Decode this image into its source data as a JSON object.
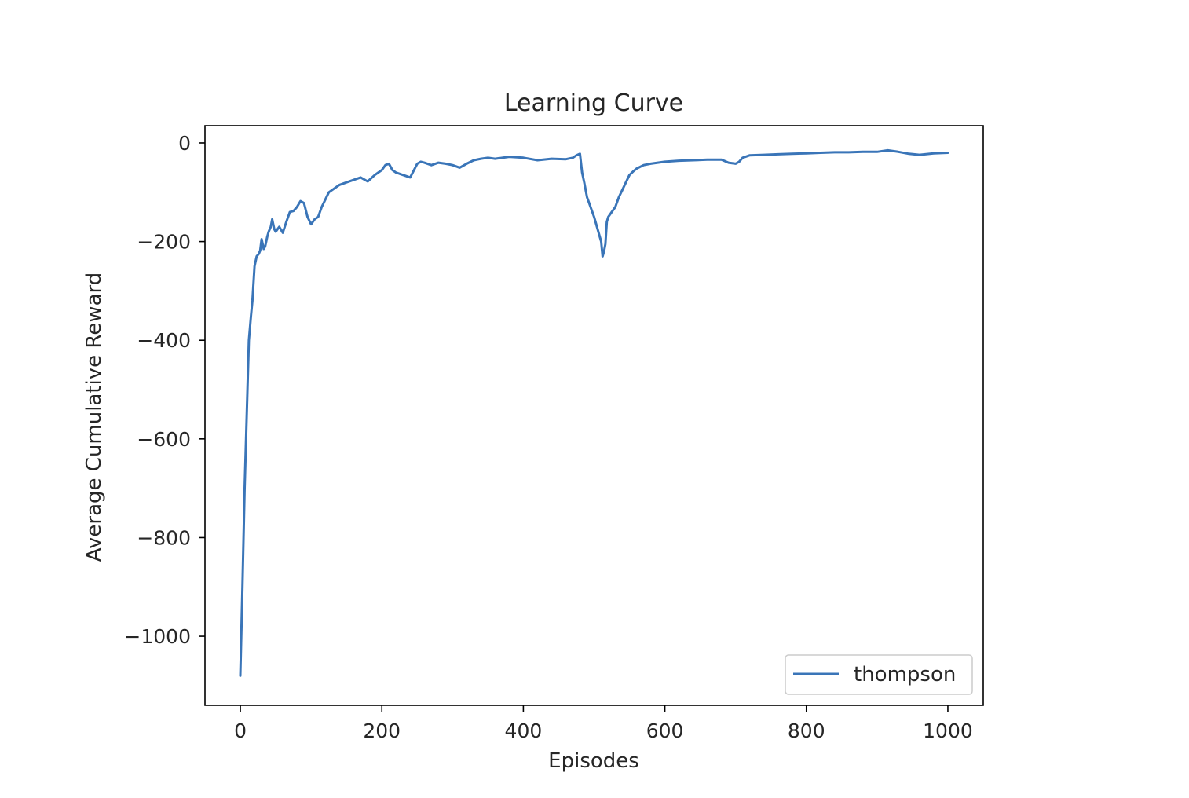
{
  "chart_data": {
    "type": "line",
    "title": "Learning Curve",
    "xlabel": "Episodes",
    "ylabel": "Average Cumulative Reward",
    "xlim": [
      -50,
      1050
    ],
    "ylim": [
      -1140,
      35
    ],
    "xticks": [
      0,
      200,
      400,
      600,
      800,
      1000
    ],
    "xtick_labels": [
      "0",
      "200",
      "400",
      "600",
      "800",
      "1000"
    ],
    "yticks": [
      0,
      -200,
      -400,
      -600,
      -800,
      -1000
    ],
    "ytick_labels": [
      "0",
      "−200",
      "−400",
      "−600",
      "−800",
      "−1000"
    ],
    "grid": false,
    "legend": {
      "placement": "lower-right"
    },
    "series": [
      {
        "name": "thompson",
        "color": "#3a75b8",
        "x": [
          0,
          3,
          6,
          10,
          12,
          15,
          17,
          20,
          23,
          26,
          28,
          30,
          33,
          35,
          38,
          40,
          43,
          45,
          48,
          50,
          55,
          60,
          65,
          70,
          75,
          80,
          85,
          90,
          95,
          100,
          105,
          110,
          115,
          120,
          125,
          130,
          140,
          150,
          160,
          170,
          180,
          190,
          200,
          205,
          210,
          215,
          220,
          230,
          240,
          250,
          255,
          260,
          270,
          280,
          290,
          300,
          310,
          320,
          330,
          340,
          350,
          360,
          380,
          400,
          420,
          440,
          460,
          470,
          475,
          480,
          483,
          486,
          490,
          495,
          500,
          505,
          510,
          512,
          514,
          516,
          518,
          520,
          525,
          530,
          535,
          540,
          545,
          550,
          555,
          560,
          570,
          580,
          590,
          600,
          620,
          640,
          660,
          680,
          690,
          700,
          705,
          710,
          720,
          740,
          760,
          780,
          800,
          820,
          840,
          860,
          880,
          900,
          915,
          930,
          945,
          960,
          980,
          1000
        ],
        "y": [
          -1080,
          -900,
          -700,
          -500,
          -400,
          -350,
          -320,
          -250,
          -230,
          -225,
          -218,
          -195,
          -215,
          -210,
          -190,
          -180,
          -170,
          -155,
          -175,
          -180,
          -170,
          -182,
          -160,
          -140,
          -138,
          -130,
          -118,
          -122,
          -150,
          -165,
          -155,
          -150,
          -130,
          -115,
          -100,
          -95,
          -85,
          -80,
          -75,
          -70,
          -78,
          -65,
          -55,
          -45,
          -42,
          -55,
          -60,
          -65,
          -70,
          -42,
          -38,
          -40,
          -45,
          -40,
          -42,
          -45,
          -50,
          -42,
          -35,
          -32,
          -30,
          -32,
          -28,
          -30,
          -35,
          -32,
          -33,
          -30,
          -25,
          -22,
          -60,
          -80,
          -110,
          -130,
          -150,
          -175,
          -200,
          -230,
          -220,
          -205,
          -160,
          -150,
          -140,
          -130,
          -110,
          -95,
          -80,
          -65,
          -58,
          -52,
          -45,
          -42,
          -40,
          -38,
          -36,
          -35,
          -34,
          -34,
          -40,
          -42,
          -38,
          -30,
          -25,
          -24,
          -23,
          -22,
          -21,
          -20,
          -19,
          -19,
          -18,
          -18,
          -15,
          -18,
          -22,
          -24,
          -21,
          -20
        ]
      }
    ]
  }
}
